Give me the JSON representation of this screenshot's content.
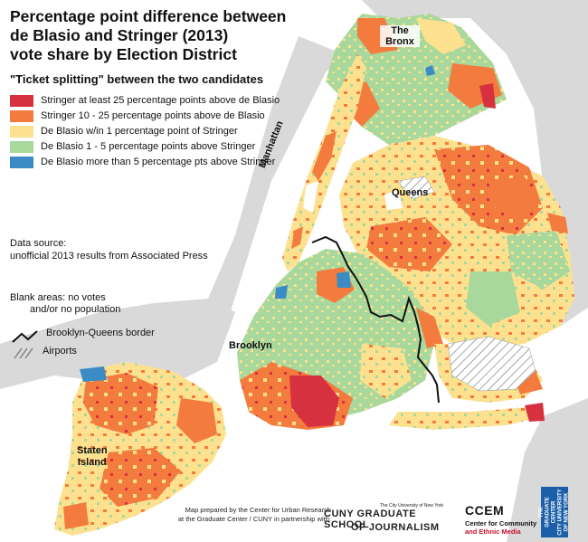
{
  "title": "Percentage point difference between\nde Blasio and Stringer (2013)\nvote share by Election District",
  "subtitle": "\"Ticket splitting\" between the two candidates",
  "legend": [
    {
      "label": "Stringer at least 25 percentage points above de Blasio",
      "color": "#d7303f"
    },
    {
      "label": "Stringer 10 - 25 percentage points above de Blasio",
      "color": "#f47b3e"
    },
    {
      "label": "De Blasio w/in 1 percentage point of Stringer",
      "color": "#fde18f"
    },
    {
      "label": "De Blasio 1 - 5 percentage points above Stringer",
      "color": "#a8d89b"
    },
    {
      "label": "De Blasio more than 5 percentage pts above Stringer",
      "color": "#3b8cc4"
    }
  ],
  "source": {
    "line1": "Data source:",
    "line2": "unofficial 2013 results from Associated Press"
  },
  "blank_areas": {
    "line1": "Blank areas: no votes",
    "line2": "and/or no population"
  },
  "border_label": "Brooklyn-Queens border",
  "airports_label": "Airports",
  "places": {
    "bronx": "The\nBronx",
    "manhattan": "Manhattan",
    "queens": "Queens",
    "brooklyn": "Brooklyn",
    "staten": "Staten\nIsland"
  },
  "credit": "Map prepared by the Center for Urban Research\nat the Graduate Center / CUNY in partnership with:",
  "logos": {
    "cuny_small": "The City University of New York",
    "cuny_line1": "CUNY GRADUATE SCHOOL",
    "cuny_line2": "OF JOURNALISM",
    "ccem_mark": "CCEM",
    "ccem_line1": "Center for Community",
    "ccem_line2": "and Ethnic Media",
    "gc": "THE\nGRADUATE\nCENTER\nCITY UNIVERSITY\nOF NEW YORK"
  },
  "colors": {
    "water": "#ffffff",
    "land_gray": "#d9d9d9",
    "stringer_25": "#d7303f",
    "stringer_10": "#f47b3e",
    "within_1": "#fde18f",
    "deblasio_1_5": "#a8d89b",
    "deblasio_5": "#3b8cc4"
  }
}
